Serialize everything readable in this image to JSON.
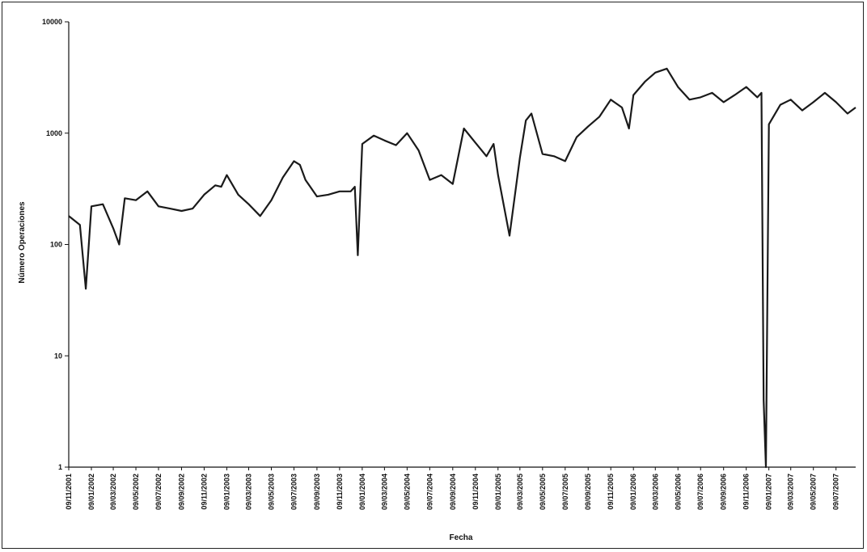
{
  "chart_data": {
    "type": "line",
    "title": "",
    "xlabel": "Fecha",
    "ylabel": "Número Operaciones",
    "yscale": "log",
    "ylim": [
      1,
      10000
    ],
    "grid": false,
    "legend": "none",
    "line_color": "#1a1a1a",
    "y_ticks": [
      "1",
      "10",
      "100",
      "1000",
      "10000"
    ],
    "x_tick_labels": [
      "09/11/2001",
      "09/01/2002",
      "09/03/2002",
      "09/05/2002",
      "09/07/2002",
      "09/09/2002",
      "09/11/2002",
      "09/01/2003",
      "09/03/2003",
      "09/05/2003",
      "09/07/2003",
      "09/09/2003",
      "09/11/2003",
      "09/01/2004",
      "09/03/2004",
      "09/05/2004",
      "09/07/2004",
      "09/09/2004",
      "09/11/2004",
      "09/01/2005",
      "09/03/2005",
      "09/05/2005",
      "09/07/2005",
      "09/09/2005",
      "09/11/2005",
      "09/01/2006",
      "09/03/2006",
      "09/05/2006",
      "09/07/2006",
      "09/09/2006",
      "09/11/2006",
      "09/01/2007",
      "09/03/2007",
      "09/05/2007",
      "09/07/2007"
    ],
    "x_start": "2001-11-09",
    "x_end": "2007-08-31",
    "series": [
      {
        "x": [
          "2001-11-09",
          "2001-12-09",
          "2001-12-25",
          "2002-01-09",
          "2002-02-09",
          "2002-03-09",
          "2002-03-25",
          "2002-04-09",
          "2002-05-09",
          "2002-06-09",
          "2002-07-09",
          "2002-08-09",
          "2002-09-09",
          "2002-10-09",
          "2002-11-09",
          "2002-12-09",
          "2002-12-25",
          "2003-01-09",
          "2003-02-09",
          "2003-03-09",
          "2003-04-09",
          "2003-05-09",
          "2003-06-09",
          "2003-07-09",
          "2003-07-25",
          "2003-08-09",
          "2003-09-09",
          "2003-10-09",
          "2003-11-09",
          "2003-12-09",
          "2003-12-20",
          "2003-12-28",
          "2004-01-09",
          "2004-02-09",
          "2004-03-09",
          "2004-04-09",
          "2004-05-09",
          "2004-06-09",
          "2004-07-09",
          "2004-08-09",
          "2004-09-09",
          "2004-10-09",
          "2004-11-09",
          "2004-12-09",
          "2004-12-28",
          "2005-01-09",
          "2005-02-09",
          "2005-03-09",
          "2005-03-25",
          "2005-04-09",
          "2005-05-09",
          "2005-06-09",
          "2005-07-09",
          "2005-08-09",
          "2005-09-09",
          "2005-10-09",
          "2005-11-09",
          "2005-12-09",
          "2005-12-28",
          "2006-01-09",
          "2006-02-09",
          "2006-03-09",
          "2006-04-09",
          "2006-05-09",
          "2006-06-09",
          "2006-07-09",
          "2006-08-09",
          "2006-09-09",
          "2006-10-09",
          "2006-11-09",
          "2006-12-09",
          "2006-12-20",
          "2006-12-26",
          "2007-01-01",
          "2007-01-09",
          "2007-02-09",
          "2007-03-09",
          "2007-04-09",
          "2007-05-09",
          "2007-06-09",
          "2007-07-09",
          "2007-08-09",
          "2007-08-31"
        ],
        "values": [
          180,
          150,
          40,
          220,
          230,
          140,
          100,
          260,
          250,
          300,
          220,
          210,
          200,
          210,
          280,
          340,
          330,
          420,
          280,
          230,
          180,
          250,
          400,
          560,
          520,
          380,
          270,
          280,
          300,
          300,
          330,
          80,
          800,
          950,
          860,
          780,
          1000,
          700,
          380,
          420,
          350,
          1100,
          820,
          620,
          800,
          420,
          120,
          600,
          1300,
          1500,
          650,
          620,
          560,
          920,
          1150,
          1400,
          2000,
          1700,
          1100,
          2200,
          2900,
          3500,
          3800,
          2600,
          2000,
          2100,
          2300,
          1900,
          2200,
          2600,
          2100,
          2300,
          4,
          1,
          1200,
          1800,
          2000,
          1600,
          1900,
          2300,
          1900,
          1500,
          1700
        ]
      }
    ]
  }
}
